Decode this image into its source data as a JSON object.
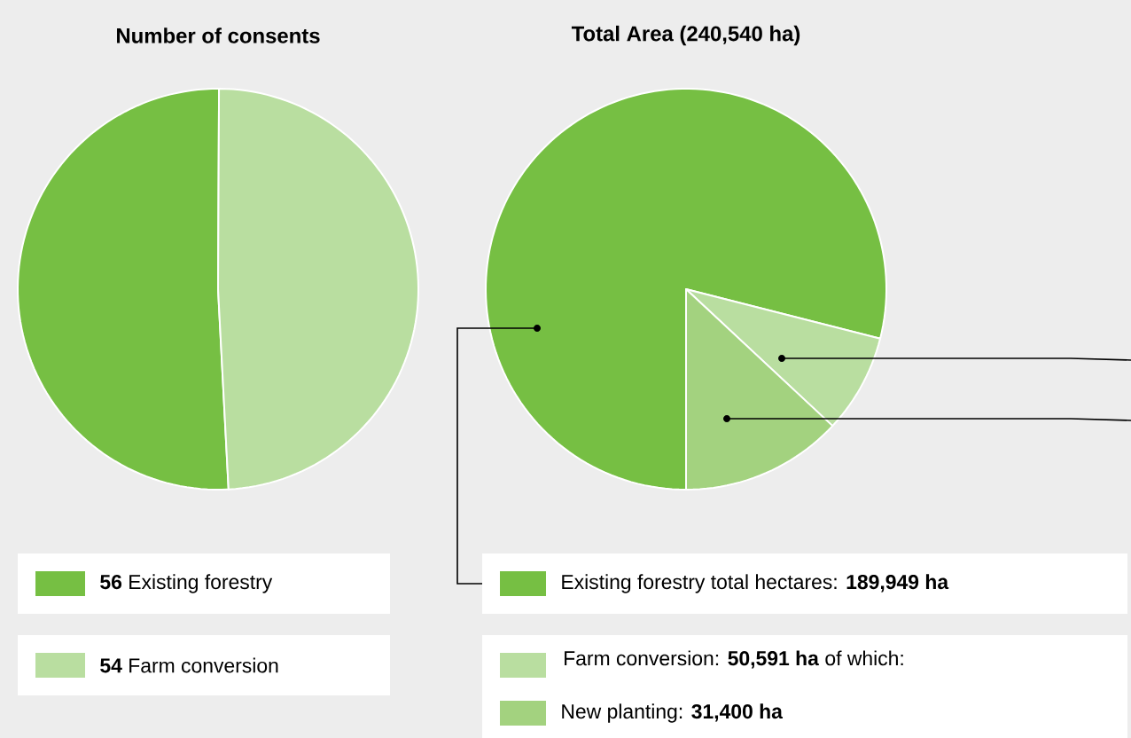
{
  "chart_data": [
    {
      "type": "pie",
      "title": "Number of consents",
      "categories": [
        "Existing forestry",
        "Farm conversion"
      ],
      "values": [
        56,
        54
      ],
      "value_labels": [
        "56",
        "54"
      ],
      "colors": [
        "#76bf43",
        "#b9dea0"
      ],
      "legend": "bottom"
    },
    {
      "type": "pie",
      "title": "Total Area (240,540 ha)",
      "categories": [
        "Existing forestry total hectares: **189,949 ha**",
        null,
        "New planting: **31,400 ha**"
      ],
      "values": [
        189949,
        19191,
        31400
      ],
      "colors": [
        "#76bf43",
        "#b9dea0",
        "#a3d27f"
      ],
      "legend": "bottom",
      "annotations": [
        "Farm conversion: **50,591 ha** of which:"
      ]
    }
  ]
}
